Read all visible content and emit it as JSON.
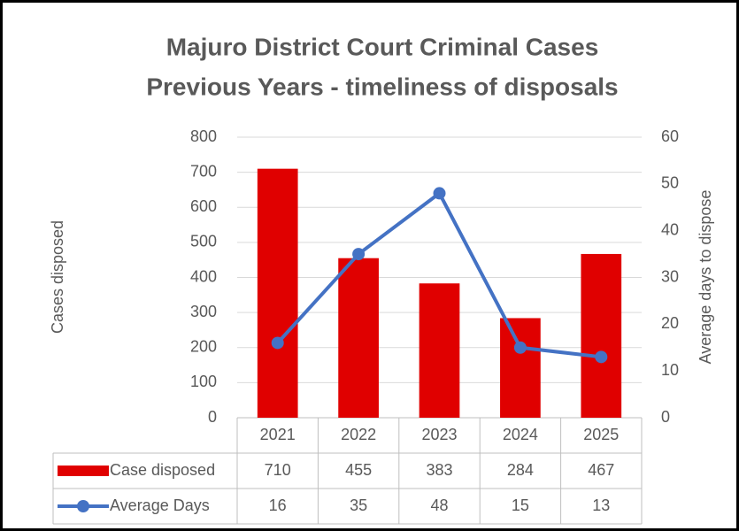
{
  "chart_data": {
    "type": "bar",
    "title": [
      "Majuro District Court Criminal Cases",
      "Previous Years - timeliness of disposals"
    ],
    "categories": [
      "2021",
      "2022",
      "2023",
      "2024",
      "2025"
    ],
    "series": [
      {
        "name": "Case disposed",
        "color": "#e00000",
        "type": "bar",
        "values": [
          710,
          455,
          383,
          284,
          467
        ]
      },
      {
        "name": "Average Days",
        "color": "#4472c4",
        "type": "line",
        "axis": "y2",
        "values": [
          16,
          35,
          48,
          15,
          13
        ]
      }
    ],
    "ylabel": "Cases disposed",
    "y2label": "Average days to dispose",
    "ylim": [
      0,
      800
    ],
    "yticks": [
      0,
      100,
      200,
      300,
      400,
      500,
      600,
      700,
      800
    ],
    "y2lim": [
      0,
      60
    ],
    "y2ticks": [
      0,
      10,
      20,
      30,
      40,
      50,
      60
    ],
    "grid": true,
    "data_table": true
  }
}
